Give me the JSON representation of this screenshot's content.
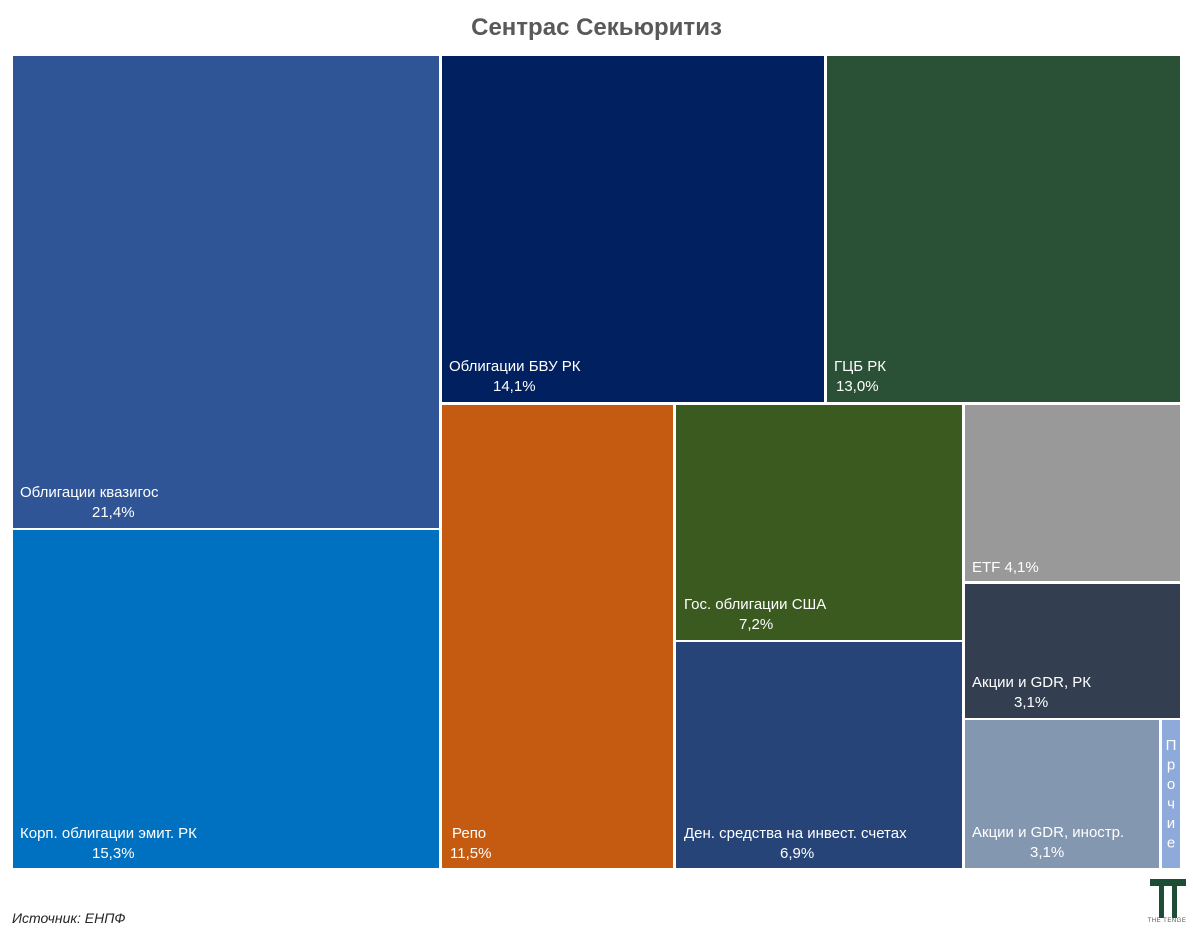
{
  "title": "Сентрас Секьюритиз",
  "source": "Источник: ЕНПФ",
  "logo": {
    "text": "THE TENGE",
    "icon": "the-tenge-logo-icon",
    "color": "#1e4d36"
  },
  "chart_data": {
    "type": "treemap",
    "title": "Сентрас Секьюритиз",
    "unit": "%",
    "items": [
      {
        "name": "Облигации квазигос",
        "value": 21.4,
        "label": "21,4%",
        "color": "#2f5597"
      },
      {
        "name": "Корп. облигации эмит. РК",
        "value": 15.3,
        "label": "15,3%",
        "color": "#0070c0"
      },
      {
        "name": "Облигации БВУ РК",
        "value": 14.1,
        "label": "14,1%",
        "color": "#002060"
      },
      {
        "name": "ГЦБ РК",
        "value": 13.0,
        "label": "13,0%",
        "color": "#2a5036"
      },
      {
        "name": "Репо",
        "value": 11.5,
        "label": "11,5%",
        "color": "#c55a11"
      },
      {
        "name": "Гос. облигации США",
        "value": 7.2,
        "label": "7,2%",
        "color": "#3a5a20"
      },
      {
        "name": "Ден. средства на инвест. счетах",
        "value": 6.9,
        "label": "6,9%",
        "color": "#264478"
      },
      {
        "name": "ETF",
        "value": 4.1,
        "label": "4,1%",
        "color": "#999999"
      },
      {
        "name": "Акции и GDR, РК",
        "value": 3.1,
        "label": "3,1%",
        "color": "#333f50"
      },
      {
        "name": "Акции и GDR, иностр.",
        "value": 3.1,
        "label": "3,1%",
        "color": "#8497b0"
      },
      {
        "name": "Прочие",
        "value": 0.4,
        "label": "",
        "color": "#8eaadb"
      }
    ]
  }
}
